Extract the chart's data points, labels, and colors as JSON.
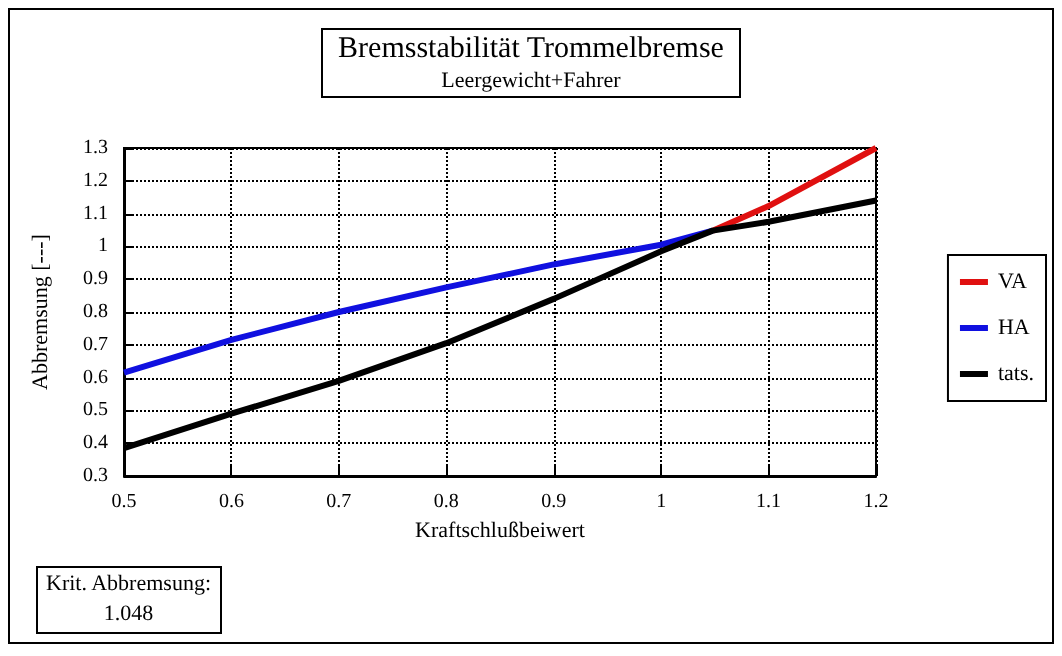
{
  "chart_data": {
    "type": "line",
    "title": "Bremsstabilität Trommelbremse",
    "subtitle": "Leergewicht+Fahrer",
    "xlabel": "Kraftschlußbeiwert",
    "ylabel": "Abbremsung [---]",
    "series": [
      {
        "name": "VA",
        "color": "#e01010",
        "x": [
          1.048,
          1.1,
          1.2
        ],
        "values": [
          1.048,
          1.123,
          1.3
        ]
      },
      {
        "name": "HA",
        "color": "#1010e0",
        "x": [
          0.5,
          0.6,
          0.7,
          0.8,
          0.9,
          1.0,
          1.048
        ],
        "values": [
          0.615,
          0.715,
          0.8,
          0.875,
          0.945,
          1.005,
          1.048
        ]
      },
      {
        "name": "tats.",
        "color": "#000000",
        "x": [
          0.5,
          0.6,
          0.7,
          0.8,
          0.9,
          1.0,
          1.048,
          1.1,
          1.2
        ],
        "values": [
          0.385,
          0.49,
          0.59,
          0.705,
          0.84,
          0.985,
          1.048,
          1.075,
          1.14
        ]
      }
    ],
    "xlim": [
      0.5,
      1.2
    ],
    "xticks": [
      0.5,
      0.6,
      0.7,
      0.8,
      0.9,
      1,
      1.1,
      1.2
    ],
    "ylim": [
      0.3,
      1.3
    ],
    "yticks": [
      0.3,
      0.4,
      0.5,
      0.6,
      0.7,
      0.8,
      0.9,
      1,
      1.1,
      1.2,
      1.3
    ],
    "grid": true,
    "legend": "right",
    "marker": "none",
    "line_style": "solid",
    "annotations": [
      "Krit. Abbremsung:",
      "1.048"
    ]
  }
}
